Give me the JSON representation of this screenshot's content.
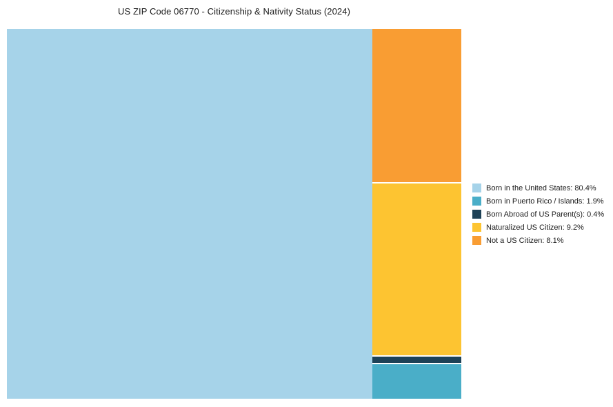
{
  "title": "US ZIP Code 06770 - Citizenship & Nativity Status (2024)",
  "chart_data": {
    "type": "treemap",
    "title": "US ZIP Code 06770 - Citizenship & Nativity Status (2024)",
    "legend_position": "right",
    "layout": {
      "main_segment": "Born in the United States",
      "main_segment_side": "left",
      "right_column_order_top_to_bottom": [
        "Not a US Citizen",
        "Naturalized US Citizen",
        "Born Abroad of US Parent(s)",
        "Born in Puerto Rico / Islands"
      ]
    },
    "segments": [
      {
        "label": "Born in the United States",
        "value": 80.4,
        "color": "#A6D3E9"
      },
      {
        "label": "Born in Puerto Rico / Islands",
        "value": 1.9,
        "color": "#4AAEC8"
      },
      {
        "label": "Born Abroad of US Parent(s)",
        "value": 0.4,
        "color": "#1E4257"
      },
      {
        "label": "Naturalized US Citizen",
        "value": 9.2,
        "color": "#FDC431"
      },
      {
        "label": "Not a US Citizen",
        "value": 8.1,
        "color": "#F99D33"
      }
    ]
  }
}
